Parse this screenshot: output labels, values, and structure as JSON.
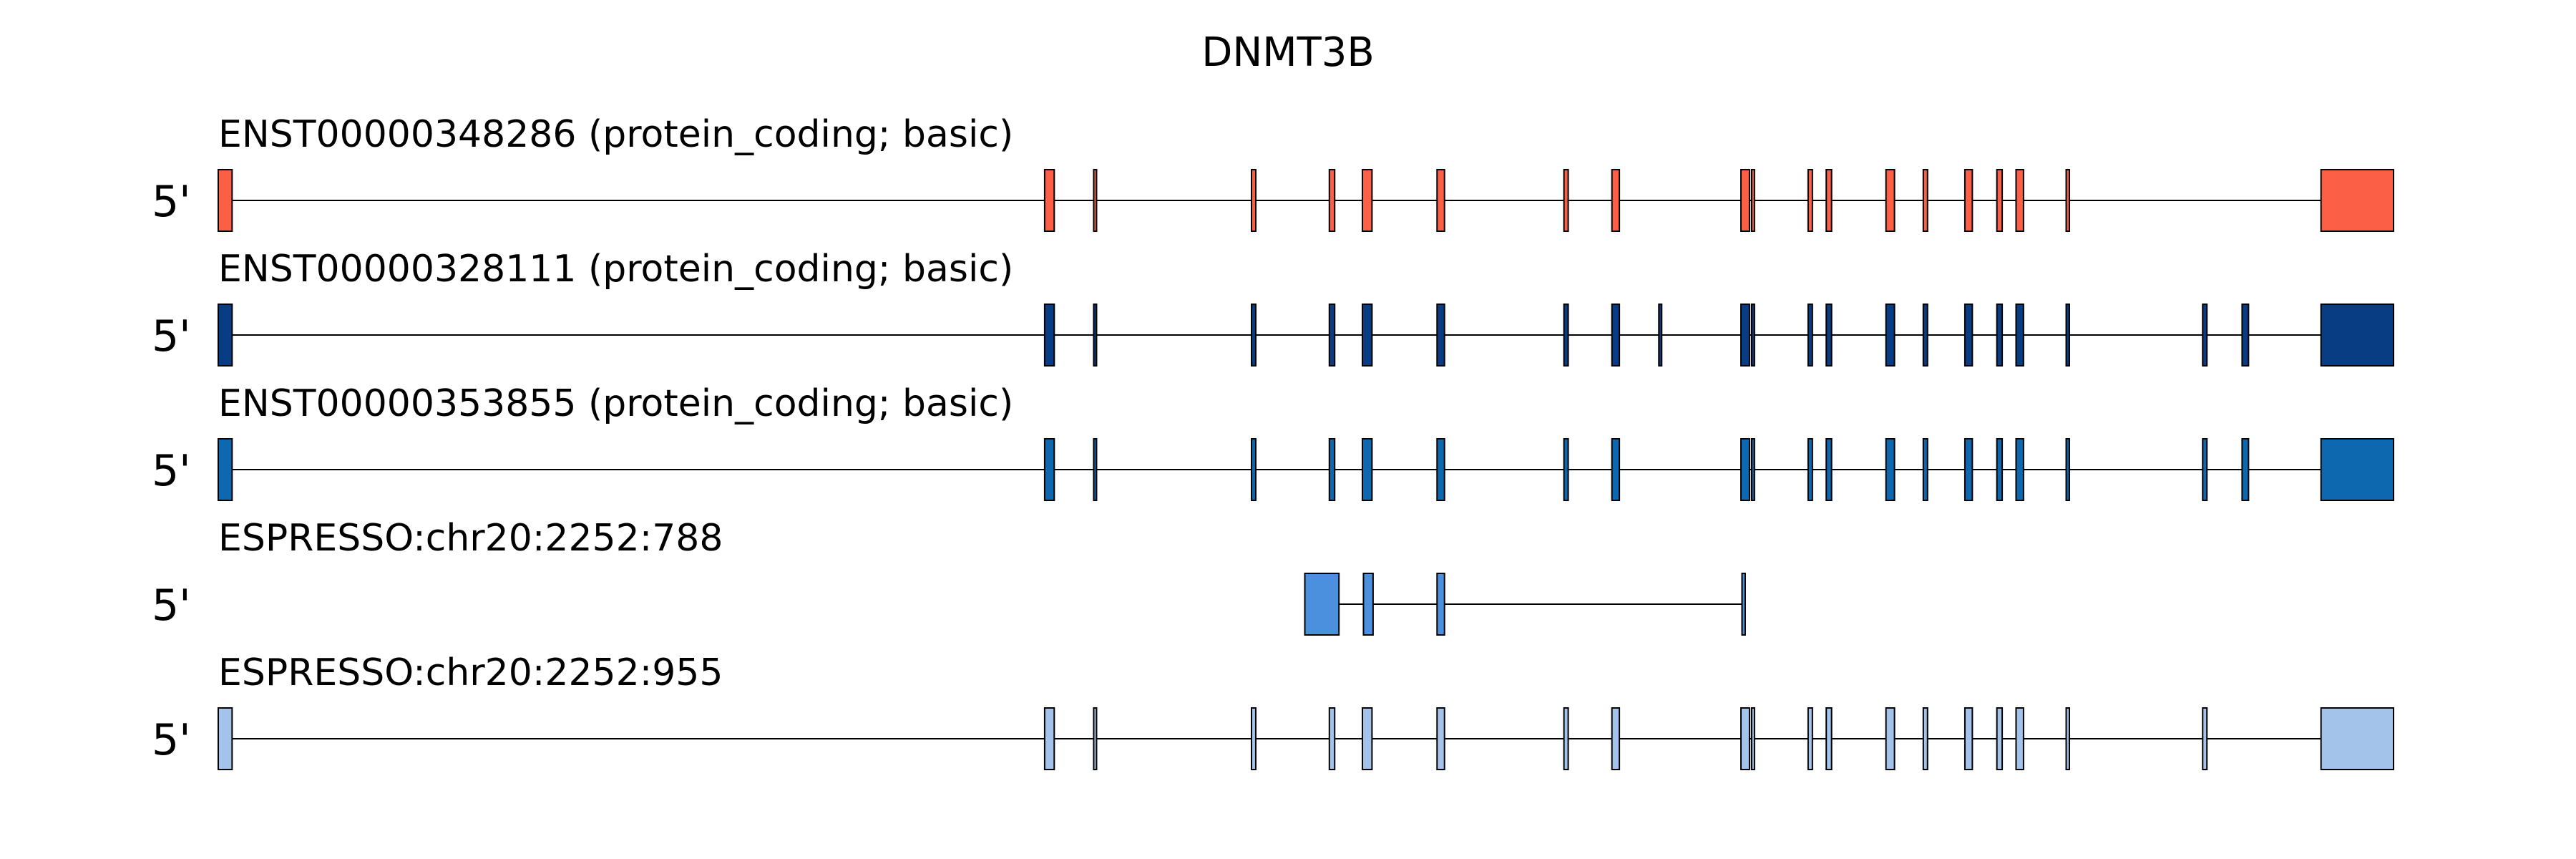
{
  "title": "DNMT3B",
  "strand_label": "5'",
  "transcripts": [
    {
      "label": "ENST00000348286 (protein_coding; basic)",
      "color": "#fb6047",
      "exons": [
        [
          0,
          1.3
        ],
        [
          77.5,
          78.4
        ],
        [
          82.1,
          82.3
        ],
        [
          96.9,
          97.3
        ],
        [
          104.2,
          104.7
        ],
        [
          107.3,
          108.2
        ],
        [
          114.3,
          115
        ],
        [
          126.2,
          126.6
        ],
        [
          130.7,
          131.4
        ],
        [
          142.8,
          143.6
        ],
        [
          143.8,
          144
        ],
        [
          149.1,
          149.5
        ],
        [
          150.8,
          151.3
        ],
        [
          156.4,
          157.2
        ],
        [
          159.9,
          160.3
        ],
        [
          163.8,
          164.5
        ],
        [
          166.8,
          167.3
        ],
        [
          168.6,
          169.3
        ],
        [
          173.3,
          173.6
        ],
        [
          197.2,
          204
        ]
      ]
    },
    {
      "label": "ENST00000328111 (protein_coding; basic)",
      "color": "#083c83",
      "exons": [
        [
          0,
          1.3
        ],
        [
          77.5,
          78.4
        ],
        [
          82.1,
          82.3
        ],
        [
          96.9,
          97.3
        ],
        [
          104.2,
          104.7
        ],
        [
          107.3,
          108.2
        ],
        [
          114.3,
          115
        ],
        [
          126.2,
          126.6
        ],
        [
          130.7,
          131.4
        ],
        [
          135.1,
          135.3
        ],
        [
          142.8,
          143.6
        ],
        [
          143.8,
          144
        ],
        [
          149.1,
          149.5
        ],
        [
          150.8,
          151.3
        ],
        [
          156.4,
          157.2
        ],
        [
          159.9,
          160.3
        ],
        [
          163.8,
          164.5
        ],
        [
          166.8,
          167.3
        ],
        [
          168.6,
          169.3
        ],
        [
          173.3,
          173.6
        ],
        [
          186.1,
          186.5
        ],
        [
          189.8,
          190.4
        ],
        [
          197.2,
          204
        ]
      ]
    },
    {
      "label": "ENST00000353855 (protein_coding; basic)",
      "color": "#0d68b0",
      "exons": [
        [
          0,
          1.3
        ],
        [
          77.5,
          78.4
        ],
        [
          82.1,
          82.3
        ],
        [
          96.9,
          97.3
        ],
        [
          104.2,
          104.7
        ],
        [
          107.3,
          108.2
        ],
        [
          114.3,
          115
        ],
        [
          126.2,
          126.6
        ],
        [
          130.7,
          131.4
        ],
        [
          142.8,
          143.6
        ],
        [
          143.8,
          144
        ],
        [
          149.1,
          149.5
        ],
        [
          150.8,
          151.3
        ],
        [
          156.4,
          157.2
        ],
        [
          159.9,
          160.3
        ],
        [
          163.8,
          164.5
        ],
        [
          166.8,
          167.3
        ],
        [
          168.6,
          169.3
        ],
        [
          173.3,
          173.6
        ],
        [
          186.1,
          186.5
        ],
        [
          189.8,
          190.4
        ],
        [
          197.2,
          204
        ]
      ]
    },
    {
      "label": "ESPRESSO:chr20:2252:788",
      "color": "#4b8fdf",
      "exons": [
        [
          101.9,
          105.1
        ],
        [
          107.4,
          108.3
        ],
        [
          114.3,
          115
        ],
        [
          142.9,
          143.2
        ]
      ]
    },
    {
      "label": "ESPRESSO:chr20:2252:955",
      "color": "#a3c3ea",
      "exons": [
        [
          0,
          1.3
        ],
        [
          77.5,
          78.4
        ],
        [
          82.1,
          82.3
        ],
        [
          96.9,
          97.3
        ],
        [
          104.2,
          104.7
        ],
        [
          107.3,
          108.2
        ],
        [
          114.3,
          115
        ],
        [
          126.2,
          126.6
        ],
        [
          130.7,
          131.4
        ],
        [
          142.8,
          143.6
        ],
        [
          143.8,
          144
        ],
        [
          149.1,
          149.5
        ],
        [
          150.8,
          151.3
        ],
        [
          156.4,
          157.2
        ],
        [
          159.9,
          160.3
        ],
        [
          163.8,
          164.5
        ],
        [
          166.8,
          167.3
        ],
        [
          168.6,
          169.3
        ],
        [
          173.3,
          173.6
        ],
        [
          186.1,
          186.5
        ],
        [
          197.2,
          204
        ]
      ]
    }
  ]
}
